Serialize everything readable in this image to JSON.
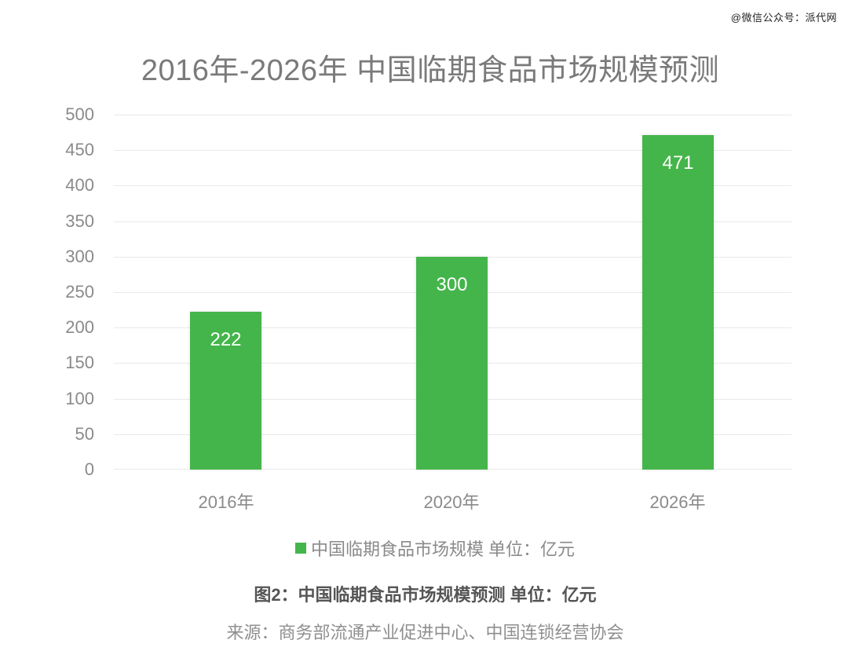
{
  "watermark": "@微信公众号：派代网",
  "chart_data": {
    "type": "bar",
    "title": "2016年-2026年 中国临期食品市场规模预测",
    "categories": [
      "2016年",
      "2020年",
      "2026年"
    ],
    "series": [
      {
        "name": "中国临期食品市场规模 单位：亿元",
        "values": [
          222,
          300,
          471
        ],
        "color": "#44b54a"
      }
    ],
    "values": [
      222,
      300,
      471
    ],
    "data_labels": [
      "222",
      "300",
      "471"
    ],
    "xlabel": "",
    "ylabel": "",
    "ylim": [
      0,
      500
    ],
    "yticks": [
      "0",
      "50",
      "100",
      "150",
      "200",
      "250",
      "300",
      "350",
      "400",
      "450",
      "500"
    ],
    "grid": true,
    "legend_position": "bottom",
    "legend": [
      "中国临期食品市场规模 单位：亿元"
    ]
  },
  "caption": "图2：中国临期食品市场规模预测 单位：亿元",
  "source": "来源：商务部流通产业促进中心、中国连锁经营协会"
}
